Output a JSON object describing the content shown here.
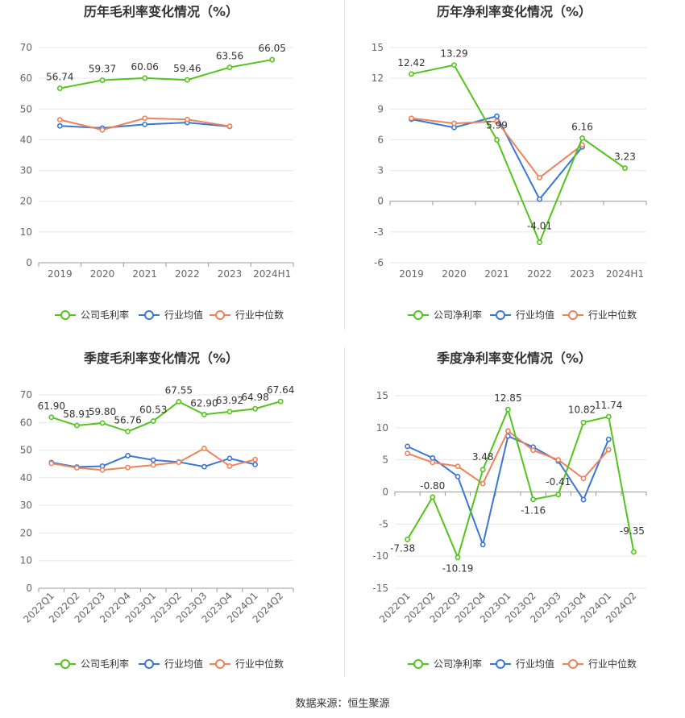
{
  "source_text": "数据来源：恒生聚源",
  "colors": {
    "company": "#52c41a",
    "industry_avg": "#3a76d8",
    "industry_median": "#f0825a"
  },
  "chart_data": [
    {
      "id": "annual-gross",
      "type": "line",
      "title": "历年毛利率变化情况（%）",
      "categories": [
        "2019",
        "2020",
        "2021",
        "2022",
        "2023",
        "2024H1"
      ],
      "ylim": [
        0,
        70
      ],
      "yticks": [
        0,
        10,
        20,
        30,
        40,
        50,
        60,
        70
      ],
      "legend_position": "bottom",
      "series": [
        {
          "name": "公司毛利率",
          "color": "#52c41a",
          "labeled": true,
          "values": [
            56.74,
            59.37,
            60.06,
            59.46,
            63.56,
            66.05
          ],
          "labels": [
            "56.74",
            "59.37",
            "60.06",
            "59.46",
            "63.56",
            "66.05"
          ]
        },
        {
          "name": "行业均值",
          "color": "#3a76d8",
          "labeled": false,
          "values": [
            44.5,
            43.8,
            45.0,
            45.6,
            44.3,
            null
          ]
        },
        {
          "name": "行业中位数",
          "color": "#f0825a",
          "labeled": false,
          "values": [
            46.5,
            43.2,
            47.0,
            46.6,
            44.4,
            null
          ]
        }
      ]
    },
    {
      "id": "annual-net",
      "type": "line",
      "title": "历年净利率变化情况（%）",
      "categories": [
        "2019",
        "2020",
        "2021",
        "2022",
        "2023",
        "2024H1"
      ],
      "ylim": [
        -6,
        15
      ],
      "yticks": [
        -6,
        -3,
        0,
        3,
        6,
        9,
        12,
        15
      ],
      "legend_position": "bottom",
      "series": [
        {
          "name": "公司净利率",
          "color": "#52c41a",
          "labeled": true,
          "values": [
            12.42,
            13.29,
            5.99,
            -4.01,
            6.16,
            3.23
          ],
          "labels": [
            "12.42",
            "13.29",
            "5.99",
            "-4.01",
            "6.16",
            "3.23"
          ]
        },
        {
          "name": "行业均值",
          "color": "#3a76d8",
          "labeled": false,
          "values": [
            8.0,
            7.2,
            8.3,
            0.2,
            5.3,
            null
          ]
        },
        {
          "name": "行业中位数",
          "color": "#f0825a",
          "labeled": false,
          "values": [
            8.1,
            7.6,
            7.8,
            2.3,
            5.5,
            null
          ]
        }
      ]
    },
    {
      "id": "quarterly-gross",
      "type": "line",
      "title": "季度毛利率变化情况（%）",
      "categories": [
        "2022Q1",
        "2022Q2",
        "2022Q3",
        "2022Q4",
        "2023Q1",
        "2023Q2",
        "2023Q3",
        "2023Q4",
        "2024Q1",
        "2024Q2"
      ],
      "ylim": [
        0,
        70
      ],
      "yticks": [
        0,
        10,
        20,
        30,
        40,
        50,
        60,
        70
      ],
      "legend_position": "bottom",
      "series": [
        {
          "name": "公司毛利率",
          "color": "#52c41a",
          "labeled": true,
          "values": [
            61.9,
            58.91,
            59.8,
            56.76,
            60.53,
            67.55,
            62.9,
            63.92,
            64.98,
            67.64
          ],
          "labels": [
            "61.90",
            "58.91",
            "59.80",
            "56.76",
            "60.53",
            "67.55",
            "62.90",
            "63.92",
            "64.98",
            "67.64"
          ]
        },
        {
          "name": "行业均值",
          "color": "#3a76d8",
          "labeled": false,
          "values": [
            45.5,
            43.9,
            44.2,
            48.0,
            46.4,
            45.7,
            44.0,
            47.0,
            44.8,
            null
          ]
        },
        {
          "name": "行业中位数",
          "color": "#f0825a",
          "labeled": false,
          "values": [
            45.2,
            43.6,
            42.8,
            43.7,
            44.6,
            45.6,
            50.6,
            44.2,
            46.6,
            null
          ]
        }
      ]
    },
    {
      "id": "quarterly-net",
      "type": "line",
      "title": "季度净利率变化情况（%）",
      "categories": [
        "2022Q1",
        "2022Q2",
        "2022Q3",
        "2022Q4",
        "2023Q1",
        "2023Q2",
        "2023Q3",
        "2023Q4",
        "2024Q1",
        "2024Q2"
      ],
      "ylim": [
        -15,
        15
      ],
      "yticks": [
        -15,
        -10,
        -5,
        0,
        5,
        10,
        15
      ],
      "legend_position": "bottom",
      "series": [
        {
          "name": "公司净利率",
          "color": "#52c41a",
          "labeled": true,
          "values": [
            -7.38,
            -0.8,
            -10.19,
            3.48,
            12.85,
            -1.16,
            -0.41,
            10.82,
            11.74,
            -9.35
          ],
          "labels": [
            "-7.38",
            "-0.80",
            "-10.19",
            "3.48",
            "12.85",
            "-1.16",
            "-0.41",
            "10.82",
            "11.74",
            "-9.35"
          ]
        },
        {
          "name": "行业均值",
          "color": "#3a76d8",
          "labeled": false,
          "values": [
            7.1,
            5.3,
            2.4,
            -8.2,
            8.7,
            7.0,
            4.8,
            -1.2,
            8.2,
            null
          ]
        },
        {
          "name": "行业中位数",
          "color": "#f0825a",
          "labeled": false,
          "values": [
            6.0,
            4.6,
            4.0,
            1.3,
            9.5,
            6.5,
            5.0,
            2.1,
            6.6,
            null
          ]
        }
      ]
    }
  ]
}
